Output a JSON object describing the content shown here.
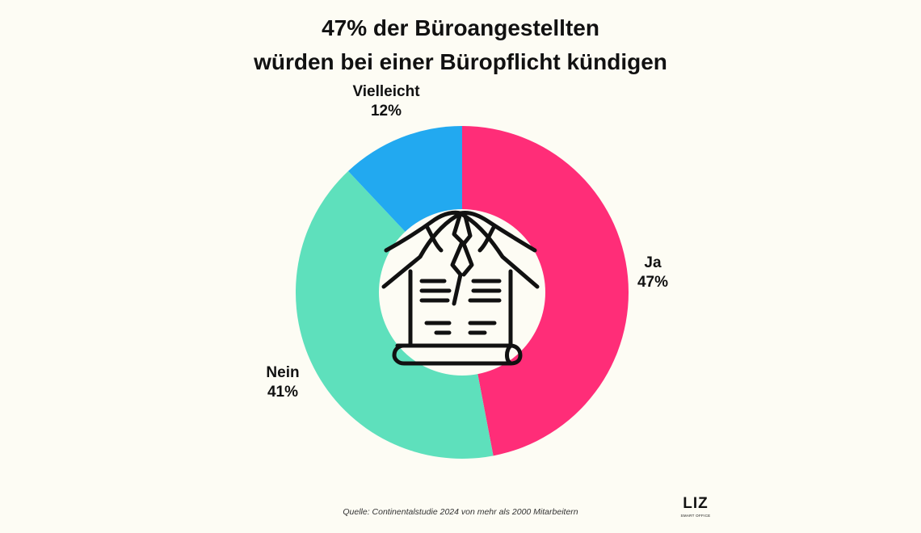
{
  "title_line1": "47% der Büroangestellten",
  "title_line2": "würden bei einer Büropflicht kündigen",
  "chart_data": {
    "type": "pie",
    "donut": true,
    "start_angle": "top, clockwise",
    "slices": [
      {
        "label": "Ja",
        "value": 47,
        "value_label": "47%",
        "color": "#ff2d78"
      },
      {
        "label": "Nein",
        "value": 41,
        "value_label": "41%",
        "color": "#5ee0bc"
      },
      {
        "label": "Vielleicht",
        "value": 12,
        "value_label": "12%",
        "color": "#22a9f0"
      }
    ],
    "center_icon": "cracked-house-document-icon"
  },
  "source": "Quelle: Continentalstudie 2024 von mehr als 2000 Mitarbeitern",
  "logo": {
    "name": "LIZ",
    "tagline": "SMART OFFICE"
  }
}
